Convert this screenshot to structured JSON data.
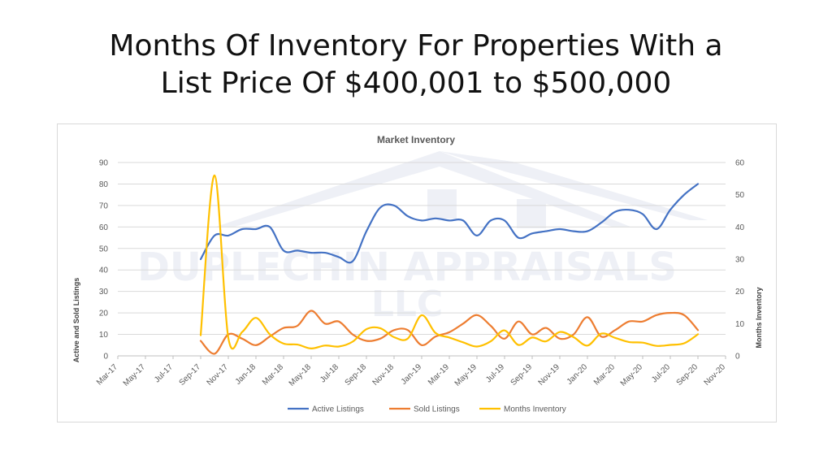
{
  "slide": {
    "title_line1": "Months Of Inventory For Properties With a",
    "title_line2": "List Price Of $400,001 to $500,000"
  },
  "watermark": {
    "line1": "DUPLECHIN APPRAISALS",
    "line2": "LLC"
  },
  "chart_data": {
    "type": "line",
    "title": "Market Inventory",
    "ylabel": "Active and Sold Listings",
    "y2label": "Months Inventory",
    "ylim": [
      0,
      90
    ],
    "y_ticks": [
      0,
      10,
      20,
      30,
      40,
      50,
      60,
      70,
      80,
      90
    ],
    "y2lim": [
      0,
      60
    ],
    "y2_ticks": [
      0,
      10,
      20,
      30,
      40,
      50,
      60
    ],
    "x_tick_labels": [
      "Mar-17",
      "May-17",
      "Jul-17",
      "Sep-17",
      "Nov-17",
      "Jan-18",
      "Mar-18",
      "May-18",
      "Jul-18",
      "Sep-18",
      "Nov-18",
      "Jan-19",
      "Mar-19",
      "May-19",
      "Jul-19",
      "Sep-19",
      "Nov-19",
      "Jan-20",
      "Mar-20",
      "May-20",
      "Jul-20",
      "Sep-20",
      "Nov-20"
    ],
    "x": [
      "Sep-17",
      "Oct-17",
      "Nov-17",
      "Dec-17",
      "Jan-18",
      "Feb-18",
      "Mar-18",
      "Apr-18",
      "May-18",
      "Jun-18",
      "Jul-18",
      "Aug-18",
      "Sep-18",
      "Oct-18",
      "Nov-18",
      "Dec-18",
      "Jan-19",
      "Feb-19",
      "Mar-19",
      "Apr-19",
      "May-19",
      "Jun-19",
      "Jul-19",
      "Aug-19",
      "Sep-19",
      "Oct-19",
      "Nov-19",
      "Dec-19",
      "Jan-20",
      "Feb-20",
      "Mar-20",
      "Apr-20",
      "May-20",
      "Jun-20",
      "Jul-20",
      "Aug-20",
      "Sep-20"
    ],
    "gridlines": true,
    "legend_position": "bottom",
    "series": [
      {
        "name": "Active Listings",
        "axis": "left",
        "color": "#4472c4",
        "values": [
          45,
          56,
          56,
          59,
          59,
          60,
          49,
          49,
          48,
          48,
          46,
          44,
          58,
          69,
          70,
          65,
          63,
          64,
          63,
          63,
          56,
          63,
          63,
          55,
          57,
          58,
          59,
          58,
          58,
          62,
          67,
          68,
          66,
          59,
          68,
          75,
          80
        ]
      },
      {
        "name": "Sold Listings",
        "axis": "left",
        "color": "#ed7d31",
        "values": [
          7,
          1,
          10,
          8,
          5,
          9,
          13,
          14,
          21,
          15,
          16,
          10,
          7,
          8,
          12,
          12,
          5,
          9,
          11,
          15,
          19,
          14,
          8,
          16,
          10,
          13,
          8,
          10,
          18,
          9,
          12,
          16,
          16,
          19,
          20,
          19,
          12
        ]
      },
      {
        "name": "Months Inventory",
        "axis": "right",
        "color": "#ffc000",
        "values": [
          6.4,
          56,
          5.6,
          7.4,
          11.8,
          6.7,
          3.8,
          3.5,
          2.3,
          3.2,
          2.9,
          4.4,
          8.3,
          8.6,
          5.8,
          5.4,
          12.6,
          7.1,
          5.7,
          4.2,
          2.9,
          4.5,
          7.9,
          3.4,
          5.7,
          4.5,
          7.4,
          5.8,
          3.2,
          6.9,
          5.6,
          4.3,
          4.1,
          3.1,
          3.4,
          3.9,
          6.7
        ]
      }
    ]
  }
}
